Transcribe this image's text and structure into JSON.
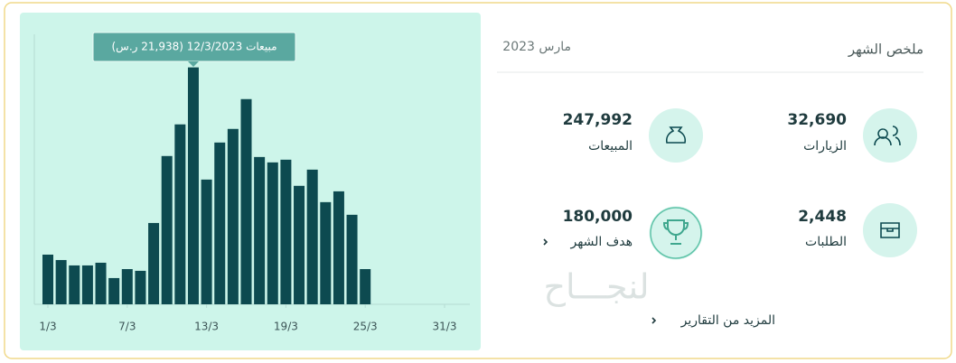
{
  "chart_data": {
    "type": "bar",
    "tooltip": "مبيعات 12/3/2023 (21,938 ر.س)",
    "x": [
      1,
      2,
      3,
      4,
      5,
      6,
      7,
      8,
      9,
      10,
      11,
      12,
      13,
      14,
      15,
      16,
      17,
      18,
      19,
      20,
      21,
      22,
      23,
      24,
      25
    ],
    "values": [
      4600,
      4100,
      3600,
      3600,
      3850,
      2430,
      3260,
      3100,
      7530,
      13730,
      16660,
      21938,
      11550,
      14980,
      16240,
      19000,
      13640,
      13140,
      13390,
      10970,
      12470,
      9460,
      10460,
      8290,
      3260
    ],
    "color": "#0d4a50",
    "xlim": [
      1,
      31
    ],
    "xticks": [
      {
        "value": 1,
        "label": "1/3"
      },
      {
        "value": 7,
        "label": "7/3"
      },
      {
        "value": 13,
        "label": "13/3"
      },
      {
        "value": 19,
        "label": "19/3"
      },
      {
        "value": 25,
        "label": "25/3"
      },
      {
        "value": 31,
        "label": "31/3"
      }
    ],
    "ylim": [
      0,
      25000
    ]
  },
  "summary": {
    "title": "ملخص الشهر",
    "period": "مارس 2023",
    "stats": [
      {
        "label": "الزيارات",
        "value": "32,690"
      },
      {
        "label": "المبيعات",
        "value": "247,992"
      },
      {
        "label": "الطلبات",
        "value": "2,448"
      },
      {
        "label": "هدف الشهر",
        "value": "180,000"
      }
    ],
    "more_link": "المزيد من التقارير"
  },
  "watermark": "لنجـــاح"
}
